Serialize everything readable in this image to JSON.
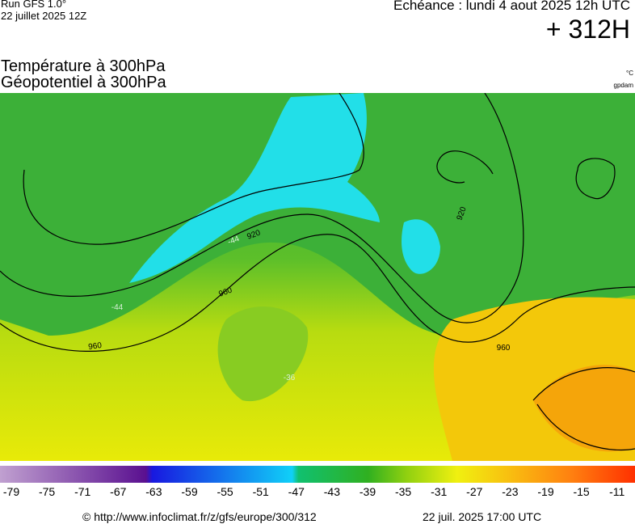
{
  "header": {
    "run": "Run GFS 1.0°",
    "run_date": "22 juillet 2025 12Z",
    "echeance": "Echéance : lundi 4 aout 2025 12h UTC",
    "hour": "+ 312H"
  },
  "titles": [
    "Température à 300hPa",
    "Géopotentiel à 300hPa"
  ],
  "units": [
    "°C",
    "gpdam"
  ],
  "map_labels": [
    "960",
    "960",
    "960",
    "920",
    "920",
    "-44",
    "-44",
    "-36"
  ],
  "colorbar": {
    "labels": [
      -79,
      -75,
      -71,
      -67,
      -63,
      -59,
      -55,
      -51,
      -47,
      -43,
      -39,
      -35,
      -31,
      -27,
      -23,
      -19,
      -15,
      -11
    ]
  },
  "footer": {
    "source": "© http://www.infoclimat.fr/z/gfs/europe/300/312",
    "generated": "22 juil. 2025 17:00 UTC"
  }
}
